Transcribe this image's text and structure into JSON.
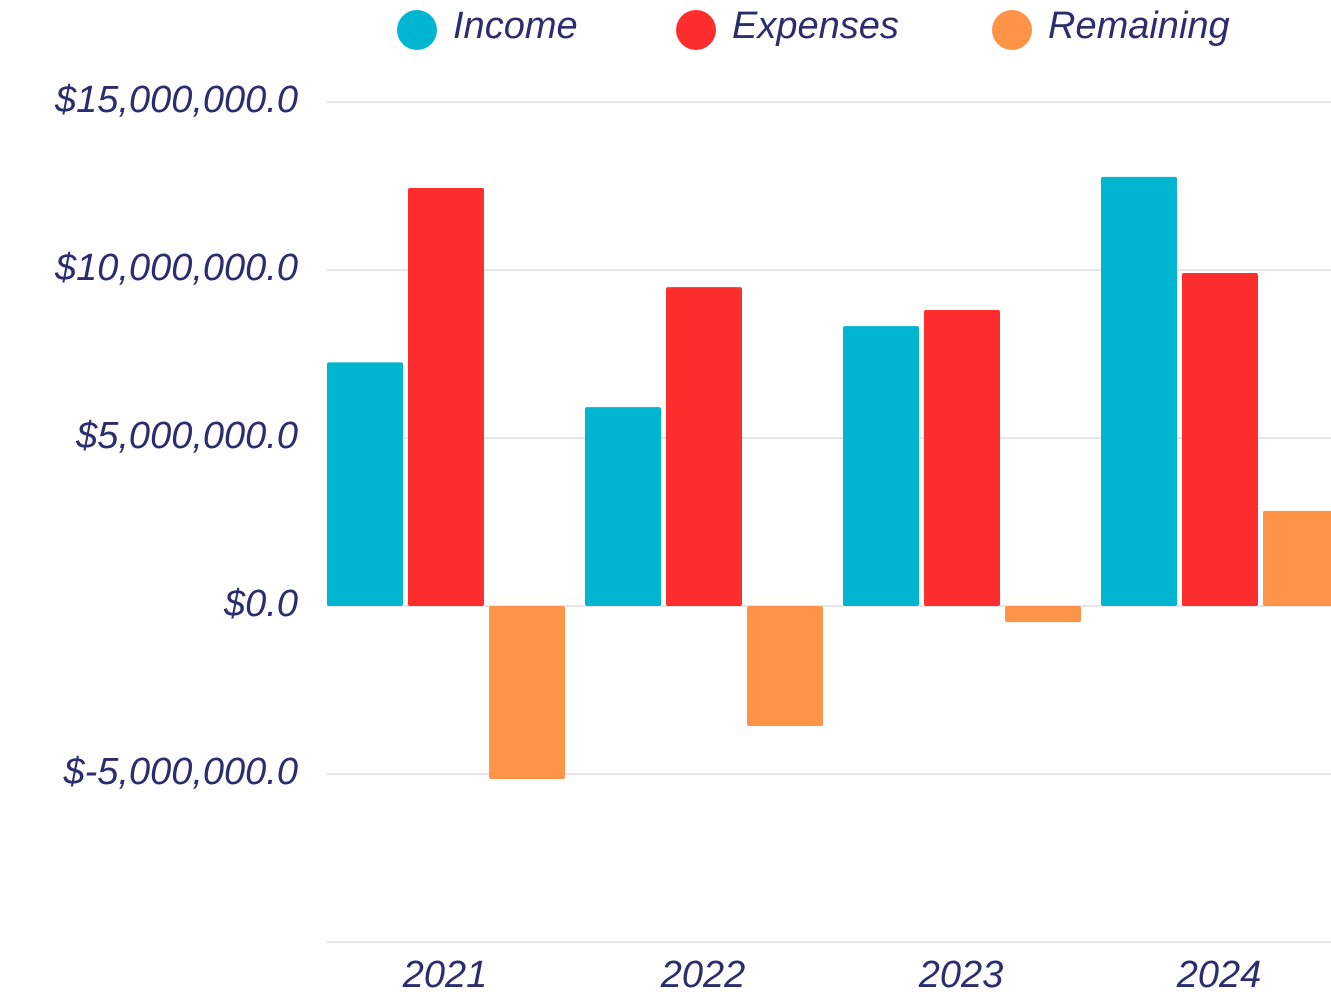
{
  "chart_data": {
    "type": "bar",
    "categories": [
      "2021",
      "2022",
      "2023",
      "2024"
    ],
    "series": [
      {
        "name": "Income",
        "color": "#00b5cf",
        "values": [
          7250000,
          5920000,
          8330000,
          12770000
        ]
      },
      {
        "name": "Expenses",
        "color": "#ff2e2e",
        "values": [
          12440000,
          9490000,
          8810000,
          9910000
        ]
      },
      {
        "name": "Remaining",
        "color": "#ff9448",
        "values": [
          -5150000,
          -3570000,
          -480000,
          2830000
        ]
      }
    ],
    "ylim": [
      -10000000,
      15000000
    ],
    "yticks": [
      {
        "value": 15000000,
        "label": "$15,000,000.0"
      },
      {
        "value": 10000000,
        "label": "$10,000,000.0"
      },
      {
        "value": 5000000,
        "label": "$5,000,000.0"
      },
      {
        "value": 0,
        "label": "$0.0"
      },
      {
        "value": -5000000,
        "label": "$-5,000,000.0"
      }
    ],
    "grid": true,
    "legend": "top"
  }
}
